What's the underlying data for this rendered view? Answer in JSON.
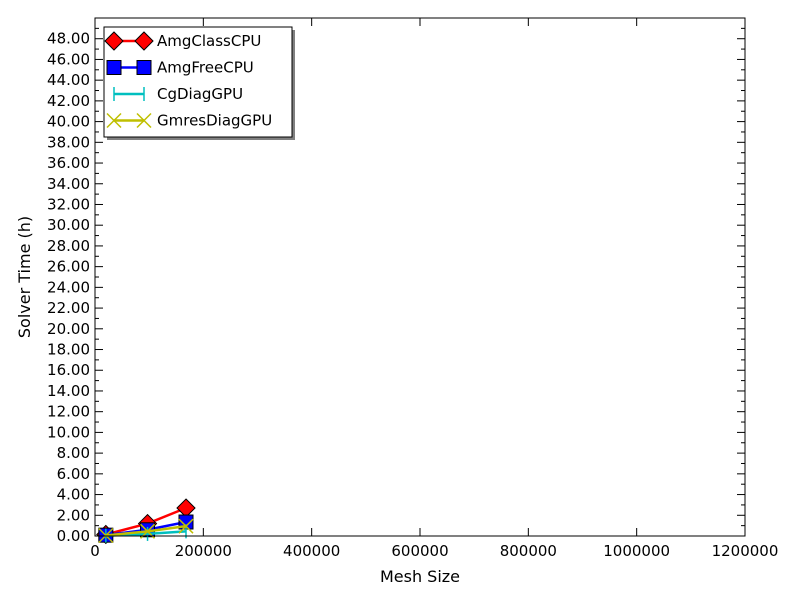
{
  "chart_data": {
    "type": "line",
    "title": "",
    "xlabel": "Mesh Size",
    "ylabel": "Solver Time (h)",
    "xlim": [
      0,
      1200000
    ],
    "ylim": [
      0,
      50
    ],
    "xticks": [
      0,
      200000,
      400000,
      600000,
      800000,
      1000000,
      1200000
    ],
    "xtick_labels": [
      "0",
      "200000",
      "400000",
      "600000",
      "800000",
      "1000000",
      "1200000"
    ],
    "yticks": [
      0,
      2,
      4,
      6,
      8,
      10,
      12,
      14,
      16,
      18,
      20,
      22,
      24,
      26,
      28,
      30,
      32,
      34,
      36,
      38,
      40,
      42,
      44,
      46,
      48
    ],
    "ytick_labels": [
      "0.00",
      "2.00",
      "4.00",
      "6.00",
      "8.00",
      "10.00",
      "12.00",
      "14.00",
      "16.00",
      "18.00",
      "20.00",
      "22.00",
      "24.00",
      "26.00",
      "28.00",
      "30.00",
      "32.00",
      "34.00",
      "36.00",
      "38.00",
      "40.00",
      "42.00",
      "44.00",
      "46.00",
      "48.00"
    ],
    "legend_position": "top-left",
    "grid": false,
    "series": [
      {
        "name": "AmgClassCPU",
        "color": "#ff0000",
        "marker": "diamond",
        "marker_color": "#ff0000",
        "x": [
          20000,
          97000,
          168000
        ],
        "y": [
          0.15,
          1.2,
          2.7
        ]
      },
      {
        "name": "AmgFreeCPU",
        "color": "#0000ff",
        "marker": "square",
        "marker_color": "#0000ff",
        "x": [
          20000,
          97000,
          168000
        ],
        "y": [
          0.08,
          0.6,
          1.35
        ]
      },
      {
        "name": "CgDiagGPU",
        "color": "#00bfbf",
        "marker": "vline",
        "marker_color": "#00bfbf",
        "x": [
          20000,
          97000,
          168000
        ],
        "y": [
          0.03,
          0.2,
          0.45
        ]
      },
      {
        "name": "GmresDiagGPU",
        "color": "#bfbf00",
        "marker": "x",
        "marker_color": "#bfbf00",
        "x": [
          20000,
          97000,
          168000
        ],
        "y": [
          0.05,
          0.45,
          0.95
        ]
      }
    ]
  }
}
